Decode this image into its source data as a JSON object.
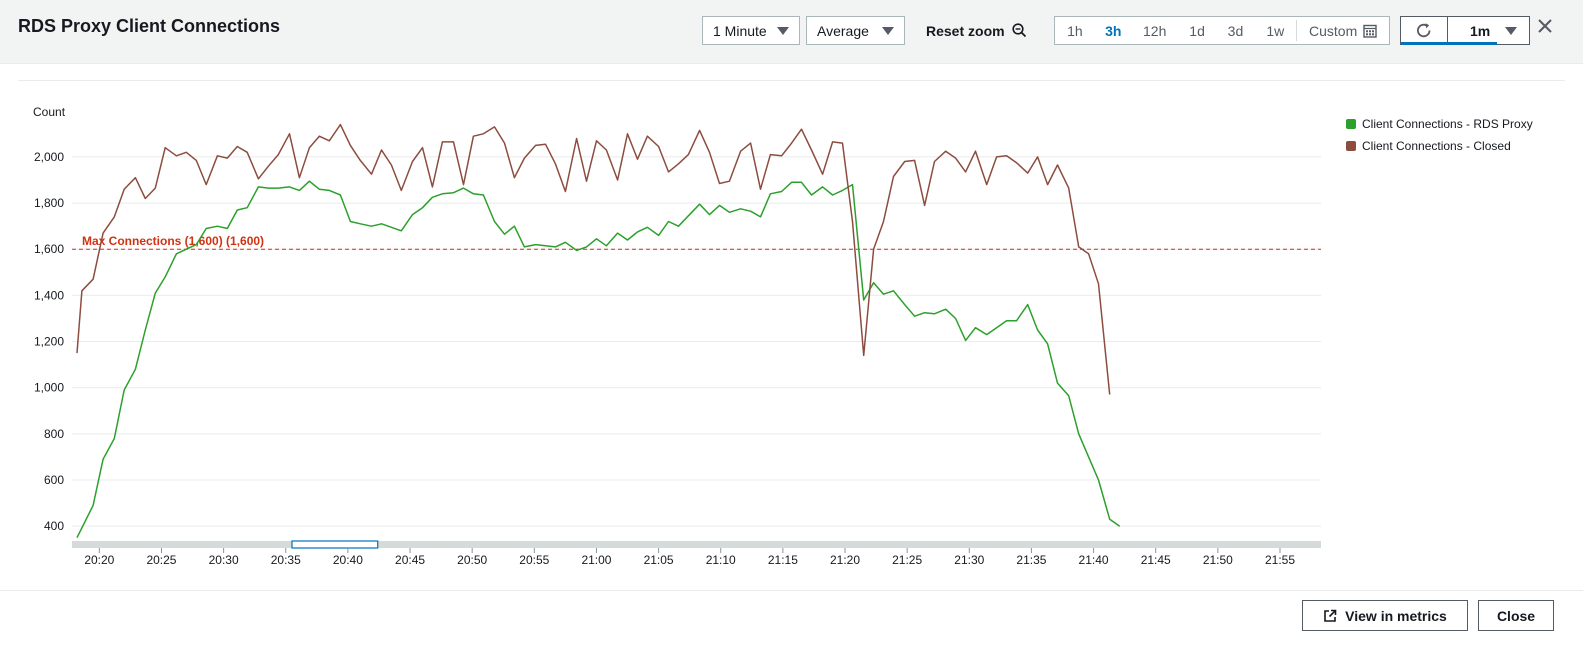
{
  "header": {
    "title": "RDS Proxy Client Connections",
    "period": "1 Minute",
    "statistic": "Average",
    "reset_zoom": "Reset zoom",
    "ranges": [
      "1h",
      "3h",
      "12h",
      "1d",
      "3d",
      "1w"
    ],
    "active_range": "3h",
    "custom": "Custom",
    "refresh_interval": "1m",
    "icons": {
      "zoom": "zoom-out-icon",
      "calendar": "calendar-icon",
      "refresh": "refresh-icon",
      "close": "close-icon",
      "external": "external-link-icon"
    }
  },
  "footer": {
    "view_in_metrics": "View in metrics",
    "close": "Close"
  },
  "chart_data": {
    "type": "line",
    "ylabel": "Count",
    "ylim": [
      340,
      2160
    ],
    "yticks": [
      400,
      600,
      800,
      1000,
      1200,
      1400,
      1600,
      1800,
      2000
    ],
    "x_ticks": [
      "20:20",
      "20:25",
      "20:30",
      "20:35",
      "20:40",
      "20:45",
      "20:50",
      "20:55",
      "21:00",
      "21:05",
      "21:10",
      "21:15",
      "21:20",
      "21:25",
      "21:30",
      "21:35",
      "21:40",
      "21:45",
      "21:50",
      "21:55"
    ],
    "x_tick_minutes": [
      20,
      25,
      30,
      35,
      40,
      45,
      50,
      55,
      60,
      65,
      70,
      75,
      80,
      85,
      90,
      95,
      100,
      105,
      110,
      115
    ],
    "x_range_minutes": [
      17.8,
      118.3
    ],
    "grid": true,
    "legend_position": "right",
    "threshold": {
      "label": "Max Connections (1,600) (1,600)",
      "value": 1600,
      "color": "#d13212"
    },
    "series": [
      {
        "name": "Client Connections - RDS Proxy",
        "color": "#2ca02c",
        "points": [
          [
            18.2,
            350
          ],
          [
            19.5,
            490
          ],
          [
            20.3,
            690
          ],
          [
            21.2,
            780
          ],
          [
            22.0,
            990
          ],
          [
            22.9,
            1080
          ],
          [
            23.7,
            1250
          ],
          [
            24.5,
            1410
          ],
          [
            25.3,
            1480
          ],
          [
            26.2,
            1580
          ],
          [
            27.0,
            1600
          ],
          [
            27.8,
            1620
          ],
          [
            28.6,
            1690
          ],
          [
            29.5,
            1700
          ],
          [
            30.3,
            1690
          ],
          [
            31.1,
            1770
          ],
          [
            31.9,
            1780
          ],
          [
            32.8,
            1870
          ],
          [
            33.6,
            1865
          ],
          [
            34.4,
            1865
          ],
          [
            35.3,
            1870
          ],
          [
            36.1,
            1855
          ],
          [
            36.9,
            1895
          ],
          [
            37.7,
            1860
          ],
          [
            38.5,
            1855
          ],
          [
            39.4,
            1835
          ],
          [
            40.2,
            1720
          ],
          [
            41.0,
            1710
          ],
          [
            41.9,
            1700
          ],
          [
            42.7,
            1710
          ],
          [
            43.5,
            1695
          ],
          [
            44.3,
            1680
          ],
          [
            45.2,
            1750
          ],
          [
            46.0,
            1780
          ],
          [
            46.8,
            1825
          ],
          [
            47.6,
            1840
          ],
          [
            48.5,
            1845
          ],
          [
            49.3,
            1865
          ],
          [
            50.1,
            1840
          ],
          [
            50.9,
            1835
          ],
          [
            51.8,
            1720
          ],
          [
            52.6,
            1665
          ],
          [
            53.4,
            1700
          ],
          [
            54.2,
            1610
          ],
          [
            55.1,
            1620
          ],
          [
            55.9,
            1615
          ],
          [
            56.7,
            1610
          ],
          [
            57.5,
            1630
          ],
          [
            58.4,
            1595
          ],
          [
            59.2,
            1610
          ],
          [
            60.0,
            1645
          ],
          [
            60.8,
            1615
          ],
          [
            61.7,
            1670
          ],
          [
            62.5,
            1640
          ],
          [
            63.3,
            1675
          ],
          [
            64.1,
            1695
          ],
          [
            65.0,
            1660
          ],
          [
            65.8,
            1720
          ],
          [
            66.6,
            1700
          ],
          [
            67.4,
            1745
          ],
          [
            68.3,
            1795
          ],
          [
            69.1,
            1750
          ],
          [
            69.9,
            1790
          ],
          [
            70.7,
            1760
          ],
          [
            71.6,
            1775
          ],
          [
            72.4,
            1765
          ],
          [
            73.2,
            1740
          ],
          [
            74.0,
            1840
          ],
          [
            74.9,
            1850
          ],
          [
            75.7,
            1890
          ],
          [
            76.5,
            1890
          ],
          [
            77.3,
            1835
          ],
          [
            78.2,
            1870
          ],
          [
            79.0,
            1835
          ],
          [
            79.8,
            1855
          ],
          [
            80.6,
            1880
          ],
          [
            81.5,
            1380
          ],
          [
            82.3,
            1455
          ],
          [
            83.1,
            1405
          ],
          [
            83.9,
            1420
          ],
          [
            84.8,
            1360
          ],
          [
            85.6,
            1310
          ],
          [
            86.4,
            1325
          ],
          [
            87.2,
            1320
          ],
          [
            88.1,
            1340
          ],
          [
            88.9,
            1300
          ],
          [
            89.7,
            1205
          ],
          [
            90.5,
            1260
          ],
          [
            91.4,
            1230
          ],
          [
            92.2,
            1260
          ],
          [
            93.0,
            1290
          ],
          [
            93.8,
            1290
          ],
          [
            94.7,
            1360
          ],
          [
            95.5,
            1250
          ],
          [
            96.3,
            1190
          ],
          [
            97.1,
            1020
          ],
          [
            98.0,
            965
          ],
          [
            98.8,
            800
          ],
          [
            99.6,
            700
          ],
          [
            100.4,
            600
          ],
          [
            101.3,
            430
          ],
          [
            102.1,
            400
          ]
        ]
      },
      {
        "name": "Client Connections - Closed",
        "color": "#8c4d3f",
        "points": [
          [
            18.2,
            1150
          ],
          [
            18.6,
            1420
          ],
          [
            19.5,
            1470
          ],
          [
            20.3,
            1670
          ],
          [
            21.2,
            1740
          ],
          [
            22.0,
            1860
          ],
          [
            22.9,
            1910
          ],
          [
            23.7,
            1820
          ],
          [
            24.5,
            1865
          ],
          [
            25.3,
            2040
          ],
          [
            26.2,
            2005
          ],
          [
            27.0,
            2020
          ],
          [
            27.8,
            1985
          ],
          [
            28.6,
            1880
          ],
          [
            29.5,
            2005
          ],
          [
            30.3,
            1995
          ],
          [
            31.1,
            2045
          ],
          [
            31.9,
            2020
          ],
          [
            32.8,
            1905
          ],
          [
            33.6,
            1960
          ],
          [
            34.4,
            2010
          ],
          [
            35.3,
            2100
          ],
          [
            36.1,
            1910
          ],
          [
            36.9,
            2040
          ],
          [
            37.7,
            2090
          ],
          [
            38.5,
            2070
          ],
          [
            39.4,
            2140
          ],
          [
            40.2,
            2050
          ],
          [
            41.0,
            1985
          ],
          [
            41.9,
            1925
          ],
          [
            42.7,
            2030
          ],
          [
            43.5,
            1965
          ],
          [
            44.3,
            1855
          ],
          [
            45.2,
            1980
          ],
          [
            46.0,
            2040
          ],
          [
            46.8,
            1870
          ],
          [
            47.6,
            2065
          ],
          [
            48.5,
            2065
          ],
          [
            49.3,
            1880
          ],
          [
            50.1,
            2090
          ],
          [
            50.9,
            2100
          ],
          [
            51.8,
            2130
          ],
          [
            52.6,
            2060
          ],
          [
            53.4,
            1910
          ],
          [
            54.2,
            1995
          ],
          [
            55.1,
            2050
          ],
          [
            55.9,
            2055
          ],
          [
            56.7,
            1970
          ],
          [
            57.5,
            1850
          ],
          [
            58.4,
            2080
          ],
          [
            59.2,
            1895
          ],
          [
            60.0,
            2070
          ],
          [
            60.8,
            2030
          ],
          [
            61.7,
            1900
          ],
          [
            62.5,
            2100
          ],
          [
            63.3,
            1990
          ],
          [
            64.1,
            2090
          ],
          [
            65.0,
            2045
          ],
          [
            65.8,
            1935
          ],
          [
            66.6,
            1970
          ],
          [
            67.4,
            2010
          ],
          [
            68.3,
            2115
          ],
          [
            69.1,
            2020
          ],
          [
            69.9,
            1885
          ],
          [
            70.7,
            1895
          ],
          [
            71.6,
            2025
          ],
          [
            72.4,
            2060
          ],
          [
            73.2,
            1860
          ],
          [
            74.0,
            2010
          ],
          [
            74.9,
            2005
          ],
          [
            75.7,
            2060
          ],
          [
            76.5,
            2120
          ],
          [
            77.3,
            2030
          ],
          [
            78.2,
            1925
          ],
          [
            79.0,
            2065
          ],
          [
            79.8,
            2060
          ],
          [
            80.6,
            1720
          ],
          [
            81.5,
            1140
          ],
          [
            82.3,
            1600
          ],
          [
            83.1,
            1720
          ],
          [
            83.9,
            1915
          ],
          [
            84.8,
            1980
          ],
          [
            85.6,
            1985
          ],
          [
            86.4,
            1790
          ],
          [
            87.2,
            1980
          ],
          [
            88.1,
            2025
          ],
          [
            88.9,
            1995
          ],
          [
            89.7,
            1935
          ],
          [
            90.5,
            2025
          ],
          [
            91.4,
            1880
          ],
          [
            92.2,
            2000
          ],
          [
            93.0,
            2005
          ],
          [
            93.8,
            1975
          ],
          [
            94.7,
            1930
          ],
          [
            95.5,
            2000
          ],
          [
            96.3,
            1880
          ],
          [
            97.1,
            1965
          ],
          [
            98.0,
            1865
          ],
          [
            98.8,
            1610
          ],
          [
            99.6,
            1580
          ],
          [
            100.4,
            1450
          ],
          [
            101.3,
            970
          ]
        ]
      }
    ],
    "zoom_window_minutes": [
      35.5,
      42.4
    ]
  }
}
